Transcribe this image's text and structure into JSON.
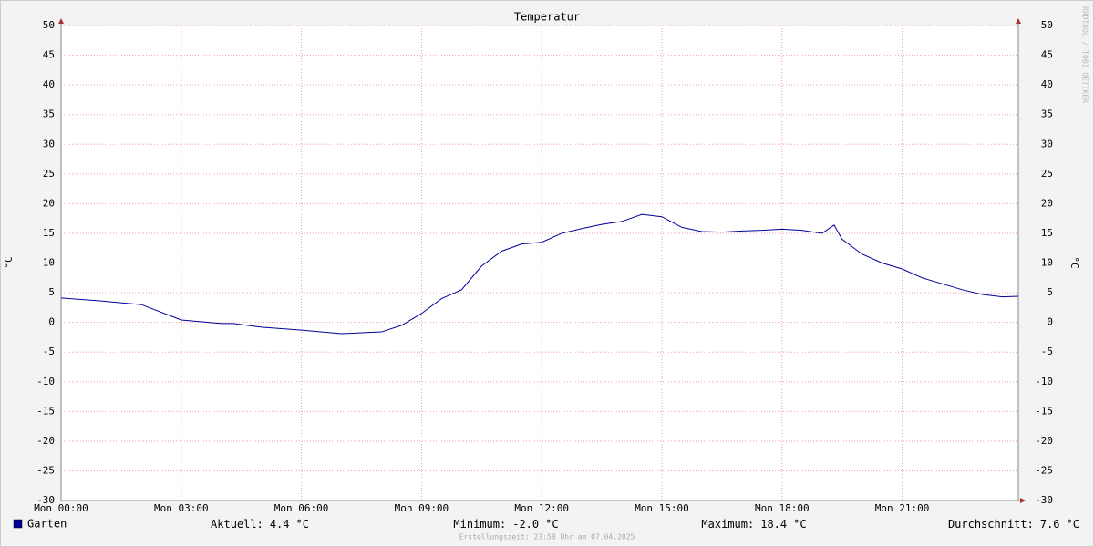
{
  "chart_data": {
    "type": "line",
    "title": "Temperatur",
    "ylabel": "°C",
    "y2label": "°C",
    "watermark": "RRDTOOL / TOBI OETIKER",
    "x": [
      0,
      1,
      2,
      3,
      4,
      4.3,
      5,
      6,
      7,
      8,
      8.5,
      9,
      9.5,
      10,
      10.5,
      11,
      11.5,
      12,
      12.5,
      13,
      13.5,
      14,
      14.5,
      15,
      15.5,
      16,
      16.5,
      17,
      17.5,
      18,
      18.5,
      19,
      19.3,
      19.5,
      20,
      20.5,
      21,
      21.5,
      22,
      22.5,
      23,
      23.5,
      23.9
    ],
    "series": [
      {
        "name": "Garten",
        "color": "#000099",
        "values": [
          4.1,
          3.6,
          3.0,
          0.4,
          -0.2,
          -0.2,
          -0.8,
          -1.3,
          -1.9,
          -1.6,
          -0.5,
          1.5,
          4.0,
          5.5,
          9.5,
          12.0,
          13.2,
          13.5,
          15.0,
          15.8,
          16.5,
          17.0,
          18.2,
          17.8,
          16.0,
          15.3,
          15.2,
          15.4,
          15.5,
          15.7,
          15.5,
          15.0,
          16.4,
          14.0,
          11.5,
          10.0,
          9.0,
          7.5,
          6.5,
          5.5,
          4.7,
          4.3,
          4.4
        ]
      }
    ],
    "xlim": [
      0,
      23.9
    ],
    "xticks": [
      {
        "value": 0,
        "label": "Mon 00:00"
      },
      {
        "value": 3,
        "label": "Mon 03:00"
      },
      {
        "value": 6,
        "label": "Mon 06:00"
      },
      {
        "value": 9,
        "label": "Mon 09:00"
      },
      {
        "value": 12,
        "label": "Mon 12:00"
      },
      {
        "value": 15,
        "label": "Mon 15:00"
      },
      {
        "value": 18,
        "label": "Mon 18:00"
      },
      {
        "value": 21,
        "label": "Mon 21:00"
      }
    ],
    "ylim": [
      -30,
      50
    ],
    "yticks": [
      -30,
      -25,
      -20,
      -15,
      -10,
      -5,
      0,
      5,
      10,
      15,
      20,
      25,
      30,
      35,
      40,
      45,
      50
    ],
    "grid": true,
    "stats": [
      {
        "label": "Aktuell:",
        "value": 4.4,
        "unit": "°C"
      },
      {
        "label": "Minimum:",
        "value": -2.0,
        "value_label": "-2.0",
        "unit": "°C"
      },
      {
        "label": "Maximum:",
        "value": 18.4,
        "unit": "°C"
      },
      {
        "label": "Durchschnitt:",
        "value": 7.6,
        "unit": "°C"
      }
    ],
    "footer": "Erstellungszeit: 23:58 Uhr am 07.04.2025"
  }
}
